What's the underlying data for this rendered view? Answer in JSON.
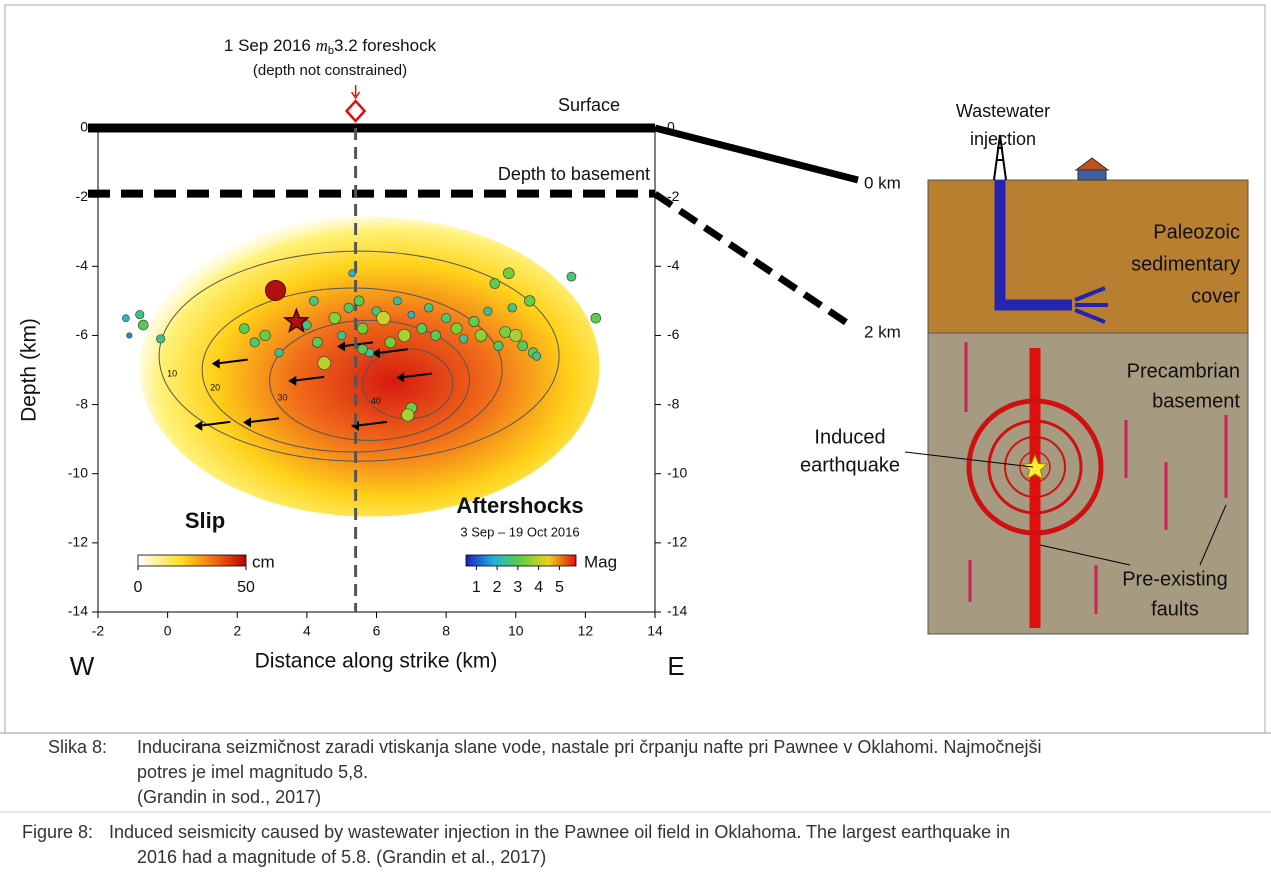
{
  "figure": {
    "plot": {
      "foreshock_pre": "1 Sep 2016 ",
      "foreshock_m": "m",
      "foreshock_sub": "b",
      "foreshock_post": "3.2 foreshock",
      "foreshock_note": "(depth not constrained)",
      "surface_label": "Surface",
      "basement_label": "Depth to basement",
      "xlabel": "Distance along strike (km)",
      "ylabel": "Depth (km)",
      "west": "W",
      "east": "E",
      "xlim": [
        -2,
        14
      ],
      "ylim": [
        -14,
        0
      ],
      "xticks": [
        -2,
        0,
        2,
        4,
        6,
        8,
        10,
        12,
        14
      ],
      "yticks": [
        0,
        -2,
        -4,
        -6,
        -8,
        -10,
        -12,
        -14
      ],
      "foreshock_x": 5.4,
      "surface_depth": 0,
      "basement_depth": -1.9,
      "slip_title": "Slip",
      "slip_unit": "cm",
      "slip_lim": [
        0,
        50
      ],
      "slip_ticks": [
        0,
        50
      ],
      "aftershocks_title": "Aftershocks",
      "aftershocks_dates": "3 Sep – 19 Oct 2016",
      "mag_unit": "Mag",
      "mag_lim": [
        0.5,
        5.8
      ],
      "mag_ticks": [
        1,
        2,
        3,
        4,
        5
      ],
      "contour_levels": [
        10,
        20,
        30,
        40
      ],
      "large_event": {
        "x": 3.1,
        "depth": -4.7
      },
      "mainshock": {
        "x": 3.7,
        "depth": -5.6
      },
      "aftershocks": {
        "x": [
          -1.2,
          -1.1,
          -0.8,
          -0.7,
          -0.2,
          2.2,
          2.5,
          2.8,
          3.2,
          4.0,
          4.3,
          4.5,
          4.8,
          5.0,
          5.2,
          5.3,
          5.5,
          5.6,
          5.8,
          6.0,
          6.2,
          6.4,
          6.6,
          6.8,
          7.0,
          7.3,
          7.0,
          6.9,
          7.5,
          7.7,
          8.0,
          8.3,
          8.5,
          8.8,
          9.0,
          9.2,
          9.4,
          9.5,
          9.7,
          9.9,
          10.0,
          10.2,
          10.4,
          10.5,
          10.6,
          11.6,
          12.3,
          9.8,
          5.6,
          4.2
        ],
        "depth": [
          -5.5,
          -6.0,
          -5.4,
          -5.7,
          -6.1,
          -5.8,
          -6.2,
          -6.0,
          -6.5,
          -5.7,
          -6.2,
          -6.8,
          -5.5,
          -6.0,
          -5.2,
          -4.2,
          -5.0,
          -5.8,
          -6.5,
          -5.3,
          -5.5,
          -6.2,
          -5.0,
          -6.0,
          -5.4,
          -5.8,
          -8.1,
          -8.3,
          -5.2,
          -6.0,
          -5.5,
          -5.8,
          -6.1,
          -5.6,
          -6.0,
          -5.3,
          -4.5,
          -6.3,
          -5.9,
          -5.2,
          -6.0,
          -6.3,
          -5.0,
          -6.5,
          -6.6,
          -4.3,
          -5.5,
          -4.2,
          -6.4,
          -5.0
        ],
        "mag": [
          2,
          1.5,
          2.5,
          3,
          2.5,
          3,
          2.8,
          3.2,
          2.5,
          2.6,
          3,
          4,
          3.5,
          2.5,
          2.8,
          2,
          3,
          3.3,
          2.5,
          2.7,
          4.2,
          3.3,
          2.4,
          3.8,
          2,
          3,
          3.3,
          3.8,
          2.6,
          3,
          2.8,
          3.4,
          2.5,
          3.1,
          3.6,
          2.5,
          3,
          2.8,
          3.4,
          2.6,
          3.8,
          3,
          3.2,
          3,
          2.5,
          2.7,
          3,
          3.3,
          2.9,
          2.7
        ]
      }
    },
    "diagram": {
      "injection_label": [
        "Wastewater",
        "injection"
      ],
      "depth_0": "0 km",
      "depth_2": "2 km",
      "sediment_label": [
        "Paleozoic",
        "sedimentary",
        "cover"
      ],
      "basement_label": [
        "Precambrian",
        "basement"
      ],
      "quake_label": [
        "Induced",
        "earthquake"
      ],
      "faults_label": [
        "Pre-existing",
        "faults"
      ]
    }
  },
  "captions": [
    {
      "label": "Slika 8:",
      "lines": [
        "Inducirana seizmičnost zaradi vtiskanja slane vode, nastale pri črpanju nafte pri Pawnee v Oklahomi. Najmočnejši",
        "potres je imel magnitudo 5,8.",
        "(Grandin in sod., 2017)"
      ]
    },
    {
      "label": "Figure 8:",
      "lines": [
        "Induced seismicity caused by wastewater injection in the Pawnee oil field in Oklahoma. The largest earthquake in",
        "2016 had a magnitude of 5.8. (Grandin et al., 2017)"
      ]
    }
  ]
}
